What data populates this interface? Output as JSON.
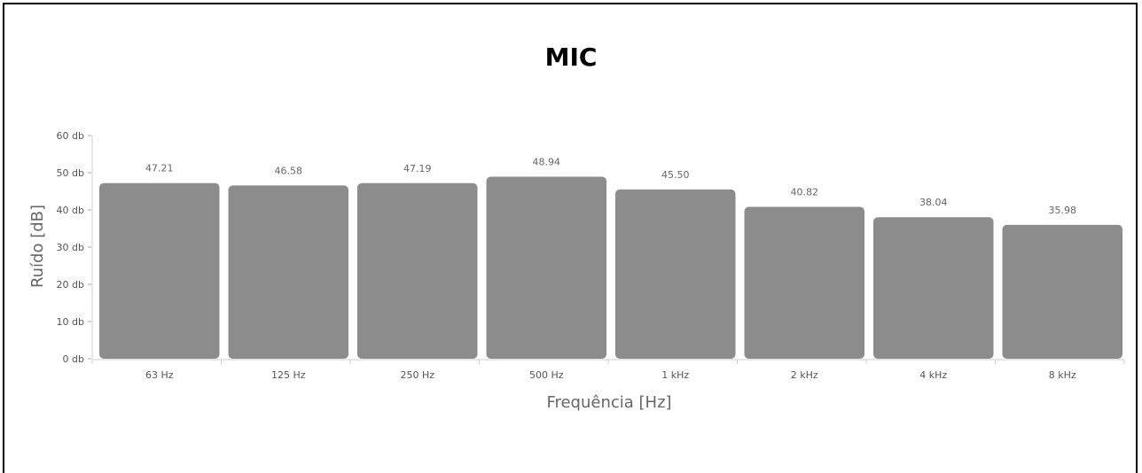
{
  "chart_data": {
    "type": "bar",
    "title": "MIC",
    "xlabel": "Frequência [Hz]",
    "ylabel": "Ruído [dB]",
    "categories": [
      "63 Hz",
      "125 Hz",
      "250 Hz",
      "500 Hz",
      "1 kHz",
      "2 kHz",
      "4 kHz",
      "8 kHz"
    ],
    "values": [
      47.21,
      46.58,
      47.19,
      48.94,
      45.5,
      40.82,
      38.04,
      35.98
    ],
    "value_labels": [
      "47.21",
      "46.58",
      "47.19",
      "48.94",
      "45.50",
      "40.82",
      "38.04",
      "35.98"
    ],
    "ylim": [
      0,
      60
    ],
    "yticks": [
      0,
      10,
      20,
      30,
      40,
      50,
      60
    ],
    "ytick_labels": [
      "0 db",
      "10 db",
      "20 db",
      "30 db",
      "40 db",
      "50 db",
      "60 db"
    ],
    "grid": false,
    "bar_color": "#8c8c8c",
    "axis_color": "#cccccc"
  }
}
